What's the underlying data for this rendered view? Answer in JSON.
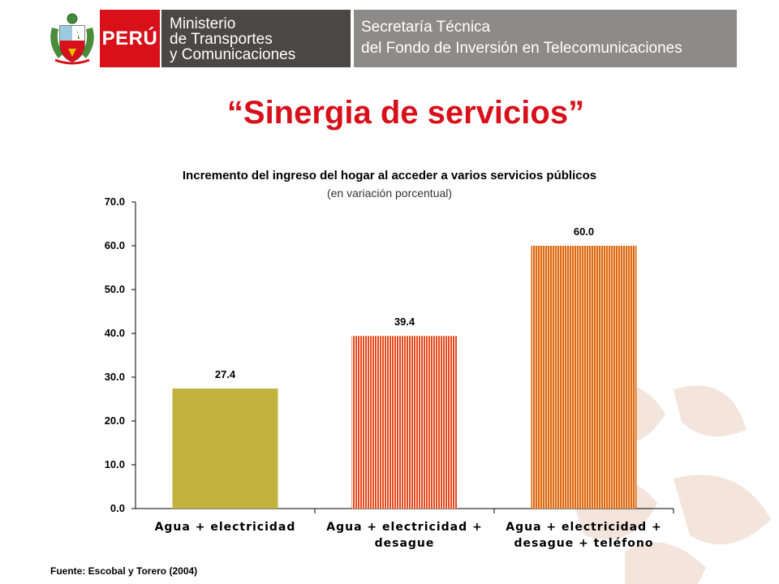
{
  "header": {
    "country_label": "PERÚ",
    "ministry_lines": [
      "Ministerio",
      "de Transportes",
      "y Comunicaciones"
    ],
    "secretariat_lines": [
      "Secretaría Técnica",
      "del Fondo de Inversión en Telecomunicaciones"
    ],
    "colors": {
      "red": "#d7101a",
      "dark_gray": "#4a4745",
      "light_gray": "#8d8b8a"
    }
  },
  "slide_title": "“Sinergia de servicios”",
  "chart_data": {
    "type": "bar",
    "title": "Incremento del ingreso del hogar al acceder a varios servicios públicos",
    "subtitle": "(en variación porcentual)",
    "categories": [
      [
        "Agua + electricidad"
      ],
      [
        "Agua + electricidad +",
        "desague"
      ],
      [
        "Agua + electricidad +",
        "desague + teléfono"
      ]
    ],
    "values": [
      27.4,
      39.4,
      60.0
    ],
    "value_labels": [
      "27.4",
      "39.4",
      "60.0"
    ],
    "bar_colors": [
      "#c2b33e",
      "#e8491c",
      "#e06a12"
    ],
    "bar_patterns": [
      "solid",
      "vertical-stripes",
      "vertical-stripes"
    ],
    "ylim": [
      0,
      70
    ],
    "yticks": [
      "0.0",
      "10.0",
      "20.0",
      "30.0",
      "40.0",
      "50.0",
      "60.0",
      "70.0"
    ],
    "xlabel": "",
    "ylabel": "",
    "grid": false
  },
  "source": "Fuente: Escobal y Torero (2004)"
}
